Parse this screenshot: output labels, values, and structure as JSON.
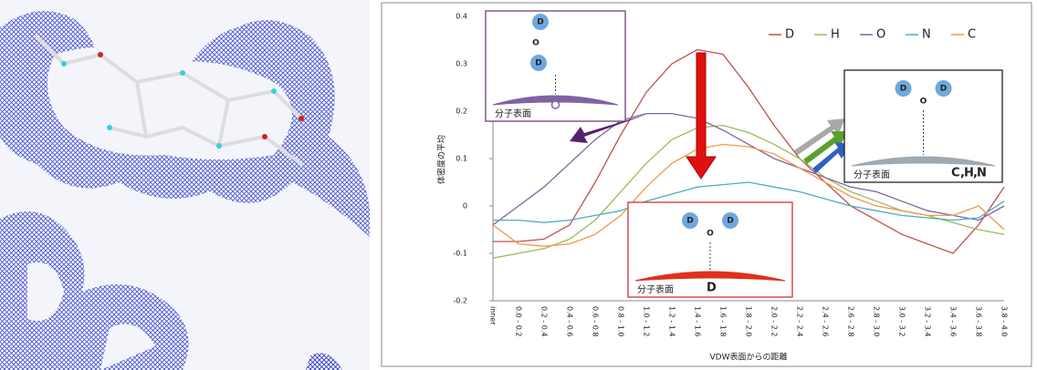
{
  "chart_data": {
    "type": "line",
    "x_label": "VDW表面からの距離",
    "y_label": "体密度の平均",
    "categories": [
      "inner",
      "0.0 - 0.2",
      "0.2 - 0.4",
      "0.4 - 0.6",
      "0.6 - 0.8",
      "0.8 - 1.0",
      "1.0 - 1.2",
      "1.2 - 1.4",
      "1.4 - 1.6",
      "1.6 - 1.8",
      "1.8 - 2.0",
      "2.0 - 2.2",
      "2.2 - 2.4",
      "2.4 - 2.6",
      "2.6 - 2.8",
      "2.8 - 3.0",
      "3.0 - 3.2",
      "3.2 - 3.4",
      "3.4 - 3.6",
      "3.6 - 3.8",
      "3.8 - 4.0"
    ],
    "series": [
      {
        "name": "D",
        "color": "#c0504d",
        "values": [
          -0.075,
          -0.075,
          -0.07,
          -0.04,
          0.05,
          0.15,
          0.24,
          0.3,
          0.33,
          0.32,
          0.25,
          0.17,
          0.1,
          0.05,
          0.0,
          -0.03,
          -0.06,
          -0.08,
          -0.1,
          -0.04,
          0.04
        ]
      },
      {
        "name": "H",
        "color": "#9bbb59",
        "values": [
          -0.11,
          -0.1,
          -0.09,
          -0.07,
          -0.03,
          0.03,
          0.09,
          0.14,
          0.165,
          0.17,
          0.155,
          0.13,
          0.1,
          0.06,
          0.03,
          0.01,
          -0.01,
          -0.02,
          -0.035,
          -0.05,
          -0.06
        ]
      },
      {
        "name": "O",
        "color": "#8064a2",
        "values": [
          -0.04,
          0.0,
          0.04,
          0.09,
          0.14,
          0.18,
          0.195,
          0.195,
          0.185,
          0.16,
          0.13,
          0.1,
          0.08,
          0.06,
          0.04,
          0.03,
          0.01,
          -0.01,
          -0.02,
          -0.03,
          0.0
        ]
      },
      {
        "name": "N",
        "color": "#4bacc6",
        "values": [
          -0.03,
          -0.03,
          -0.035,
          -0.03,
          -0.02,
          -0.01,
          0.01,
          0.025,
          0.04,
          0.045,
          0.05,
          0.04,
          0.03,
          0.015,
          0.0,
          -0.01,
          -0.02,
          -0.025,
          -0.03,
          -0.025,
          0.01
        ]
      },
      {
        "name": "C",
        "color": "#f79646",
        "values": [
          -0.04,
          -0.08,
          -0.085,
          -0.08,
          -0.06,
          -0.02,
          0.04,
          0.09,
          0.12,
          0.13,
          0.125,
          0.11,
          0.08,
          0.05,
          0.02,
          0.0,
          -0.01,
          -0.02,
          -0.02,
          0.0,
          -0.05
        ]
      }
    ],
    "ylim": [
      -0.2,
      0.4
    ],
    "yticks": [
      -0.2,
      -0.1,
      0,
      0.1,
      0.2,
      0.3,
      0.4
    ],
    "grid": false,
    "legend": "top-right",
    "insets": [
      {
        "atoms": [
          "D",
          "O",
          "D"
        ],
        "surface": "分子表面",
        "color": "#8064a2"
      },
      {
        "atoms": [
          "D",
          "O",
          "D"
        ],
        "surface": "分子表面",
        "color": "#e0301e",
        "probe": [
          {
            "text": "D",
            "color": "#e0301e"
          }
        ]
      },
      {
        "atoms": [
          "D",
          "O",
          "D"
        ],
        "surface": "分子表面",
        "color": "#a0a8b0",
        "probe": [
          {
            "text": "C",
            "color": "#f07a10"
          },
          {
            "text": ",",
            "color": "#222222"
          },
          {
            "text": "H",
            "color": "#4a9a30"
          },
          {
            "text": ",",
            "color": "#222222"
          },
          {
            "text": "N",
            "color": "#3060c0"
          }
        ]
      }
    ]
  }
}
